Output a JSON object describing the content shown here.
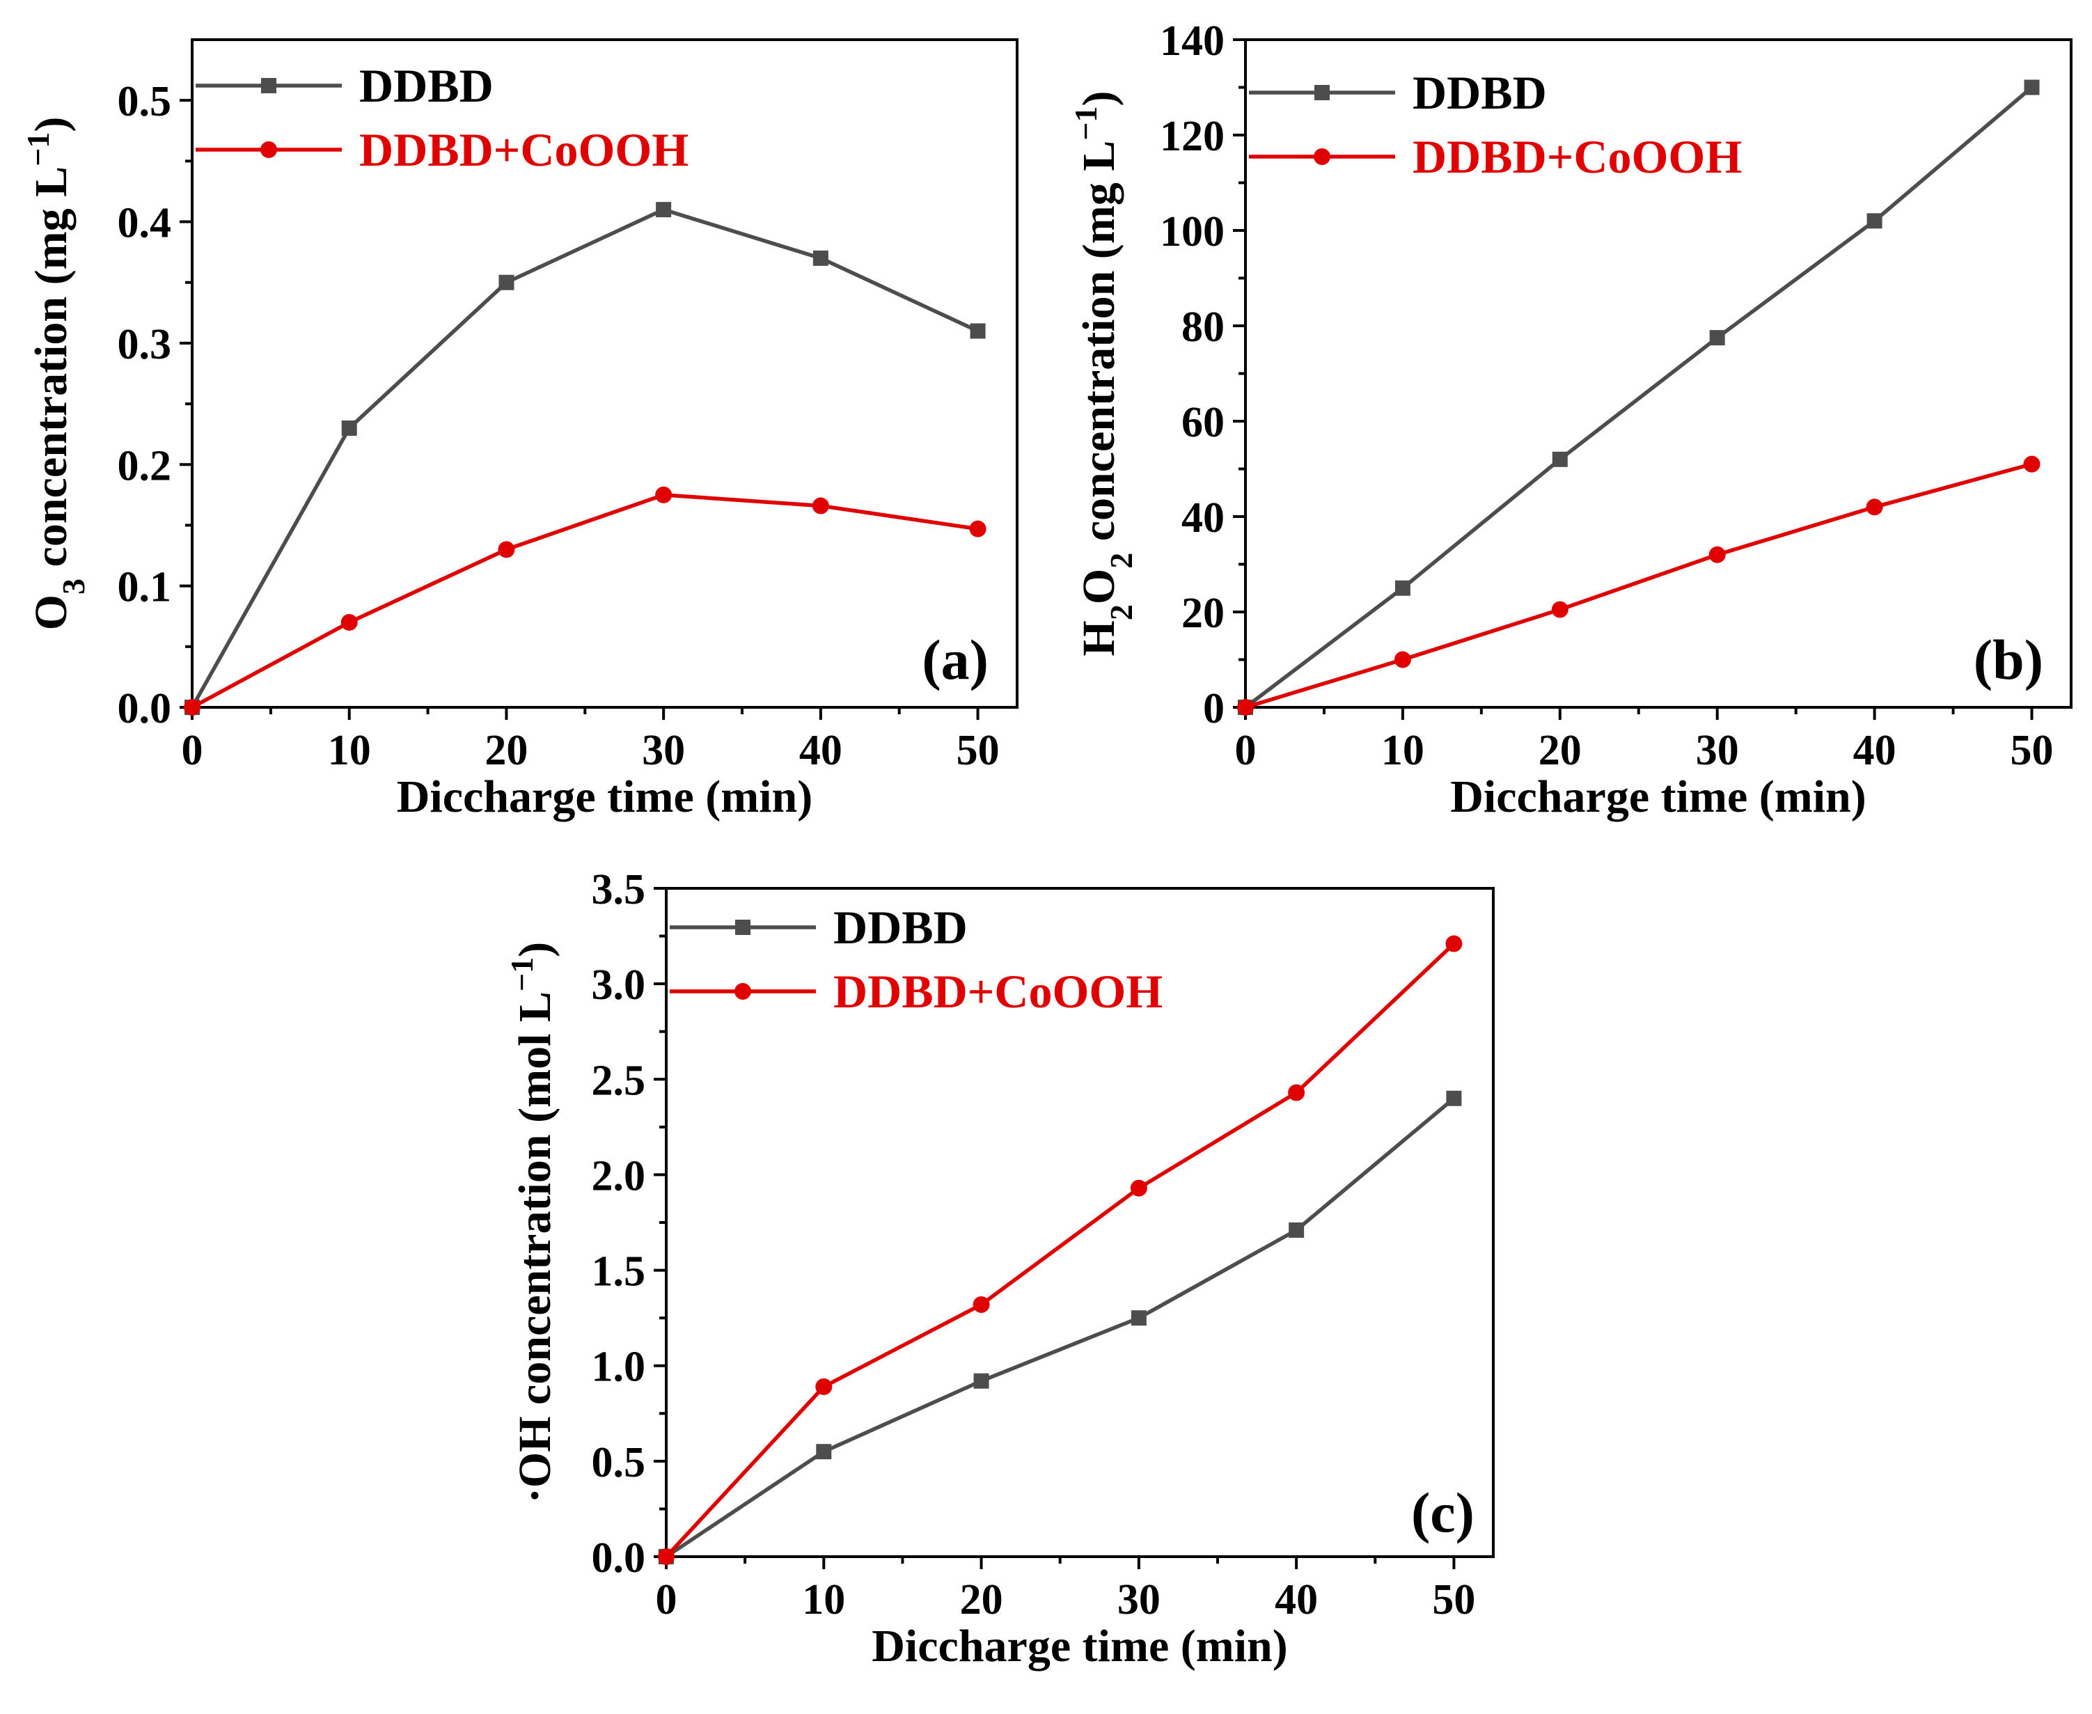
{
  "chart_data": [
    {
      "type": "line",
      "panel_label": "(a)",
      "xlabel": "Diccharge time (min)",
      "ylabel": "O3 concentration (mg L−1)",
      "ylabel_parts": {
        "pre": "O",
        "sub": "3",
        "mid": " concentration (mg L",
        "sup": "−1",
        "post": ")"
      },
      "xlim": [
        0,
        52.5
      ],
      "ylim": [
        0,
        0.55
      ],
      "xticks": [
        0,
        10,
        20,
        30,
        40,
        50
      ],
      "xtick_labels": [
        "0",
        "10",
        "20",
        "30",
        "40",
        "50"
      ],
      "yticks": [
        0,
        0.1,
        0.2,
        0.3,
        0.4,
        0.5
      ],
      "ytick_labels": [
        "0.0",
        "0.1",
        "0.2",
        "0.3",
        "0.4",
        "0.5"
      ],
      "legend_position": "top-left",
      "series": [
        {
          "name": "DDBD",
          "color": "#4d4d4d",
          "marker": "square",
          "x": [
            0,
            10,
            20,
            30,
            40,
            50
          ],
          "y": [
            0,
            0.23,
            0.35,
            0.41,
            0.37,
            0.31
          ]
        },
        {
          "name": "DDBD+CoOOH",
          "color": "#e00000",
          "marker": "circle",
          "x": [
            0,
            10,
            20,
            30,
            40,
            50
          ],
          "y": [
            0,
            0.07,
            0.13,
            0.175,
            0.166,
            0.147
          ]
        }
      ]
    },
    {
      "type": "line",
      "panel_label": "(b)",
      "xlabel": "Diccharge time (min)",
      "ylabel": "H2O2 concentration (mg L−1)",
      "ylabel_parts": {
        "pre": "H",
        "sub": "2",
        "pre2": "O",
        "sub2": "2",
        "mid": " concentration (mg L",
        "sup": "−1",
        "post": ")"
      },
      "xlim": [
        0,
        52.5
      ],
      "ylim": [
        0,
        140
      ],
      "xticks": [
        0,
        10,
        20,
        30,
        40,
        50
      ],
      "xtick_labels": [
        "0",
        "10",
        "20",
        "30",
        "40",
        "50"
      ],
      "yticks": [
        0,
        20,
        40,
        60,
        80,
        100,
        120,
        140
      ],
      "ytick_labels": [
        "0",
        "20",
        "40",
        "60",
        "80",
        "100",
        "120",
        "140"
      ],
      "legend_position": "top-left",
      "series": [
        {
          "name": "DDBD",
          "color": "#4d4d4d",
          "marker": "square",
          "x": [
            0,
            10,
            20,
            30,
            40,
            50
          ],
          "y": [
            0,
            25,
            52,
            77.5,
            102,
            130
          ]
        },
        {
          "name": "DDBD+CoOOH",
          "color": "#e00000",
          "marker": "circle",
          "x": [
            0,
            10,
            20,
            30,
            40,
            50
          ],
          "y": [
            0,
            10,
            20.5,
            32,
            42,
            51
          ]
        }
      ]
    },
    {
      "type": "line",
      "panel_label": "(c)",
      "xlabel": "Diccharge time (min)",
      "ylabel": "·OH concentration (mol L−1)",
      "ylabel_parts": {
        "pre": "·OH concentration (mol L",
        "sup": "−1",
        "post": ")"
      },
      "xlim": [
        0,
        52.5
      ],
      "ylim": [
        0,
        3.5
      ],
      "xticks": [
        0,
        10,
        20,
        30,
        40,
        50
      ],
      "xtick_labels": [
        "0",
        "10",
        "20",
        "30",
        "40",
        "50"
      ],
      "yticks": [
        0,
        0.5,
        1.0,
        1.5,
        2.0,
        2.5,
        3.0,
        3.5
      ],
      "ytick_labels": [
        "0.0",
        "0.5",
        "1.0",
        "1.5",
        "2.0",
        "2.5",
        "3.0",
        "3.5"
      ],
      "legend_position": "top-left",
      "series": [
        {
          "name": "DDBD",
          "color": "#4d4d4d",
          "marker": "square",
          "x": [
            0,
            10,
            20,
            30,
            40,
            50
          ],
          "y": [
            0,
            0.55,
            0.92,
            1.25,
            1.71,
            2.4
          ]
        },
        {
          "name": "DDBD+CoOOH",
          "color": "#e00000",
          "marker": "circle",
          "x": [
            0,
            10,
            20,
            30,
            40,
            50
          ],
          "y": [
            0,
            0.89,
            1.32,
            1.93,
            2.43,
            3.21
          ]
        }
      ]
    }
  ]
}
